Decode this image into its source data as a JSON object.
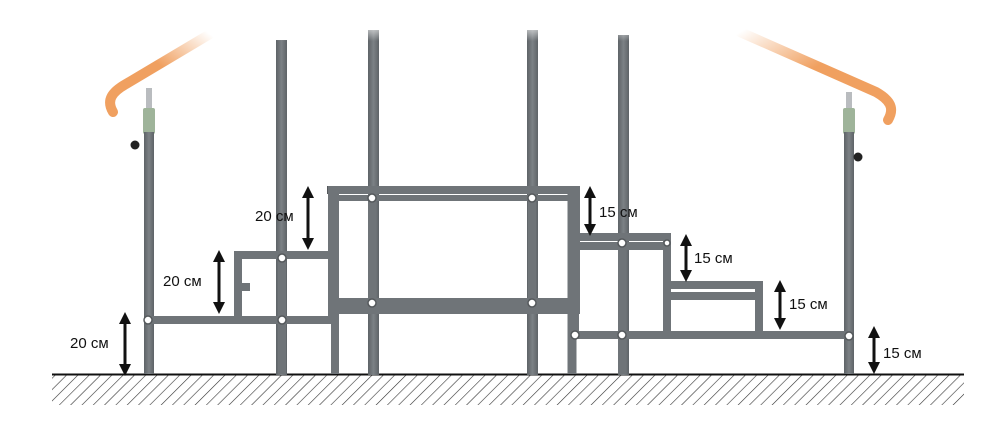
{
  "colors": {
    "frame": "#6f7478",
    "frame_dark": "#55595c",
    "frame_light": "#8a8f93",
    "rail_wood": "#f0a060",
    "ground": "#222222",
    "arrow": "#111111"
  },
  "dimensions": {
    "left_ground": "20 см",
    "left_step1": "20 см",
    "left_step2": "20 см",
    "right_top": "15 см",
    "right_step1": "15 см",
    "right_step2": "15 см",
    "right_ground": "15 см"
  }
}
